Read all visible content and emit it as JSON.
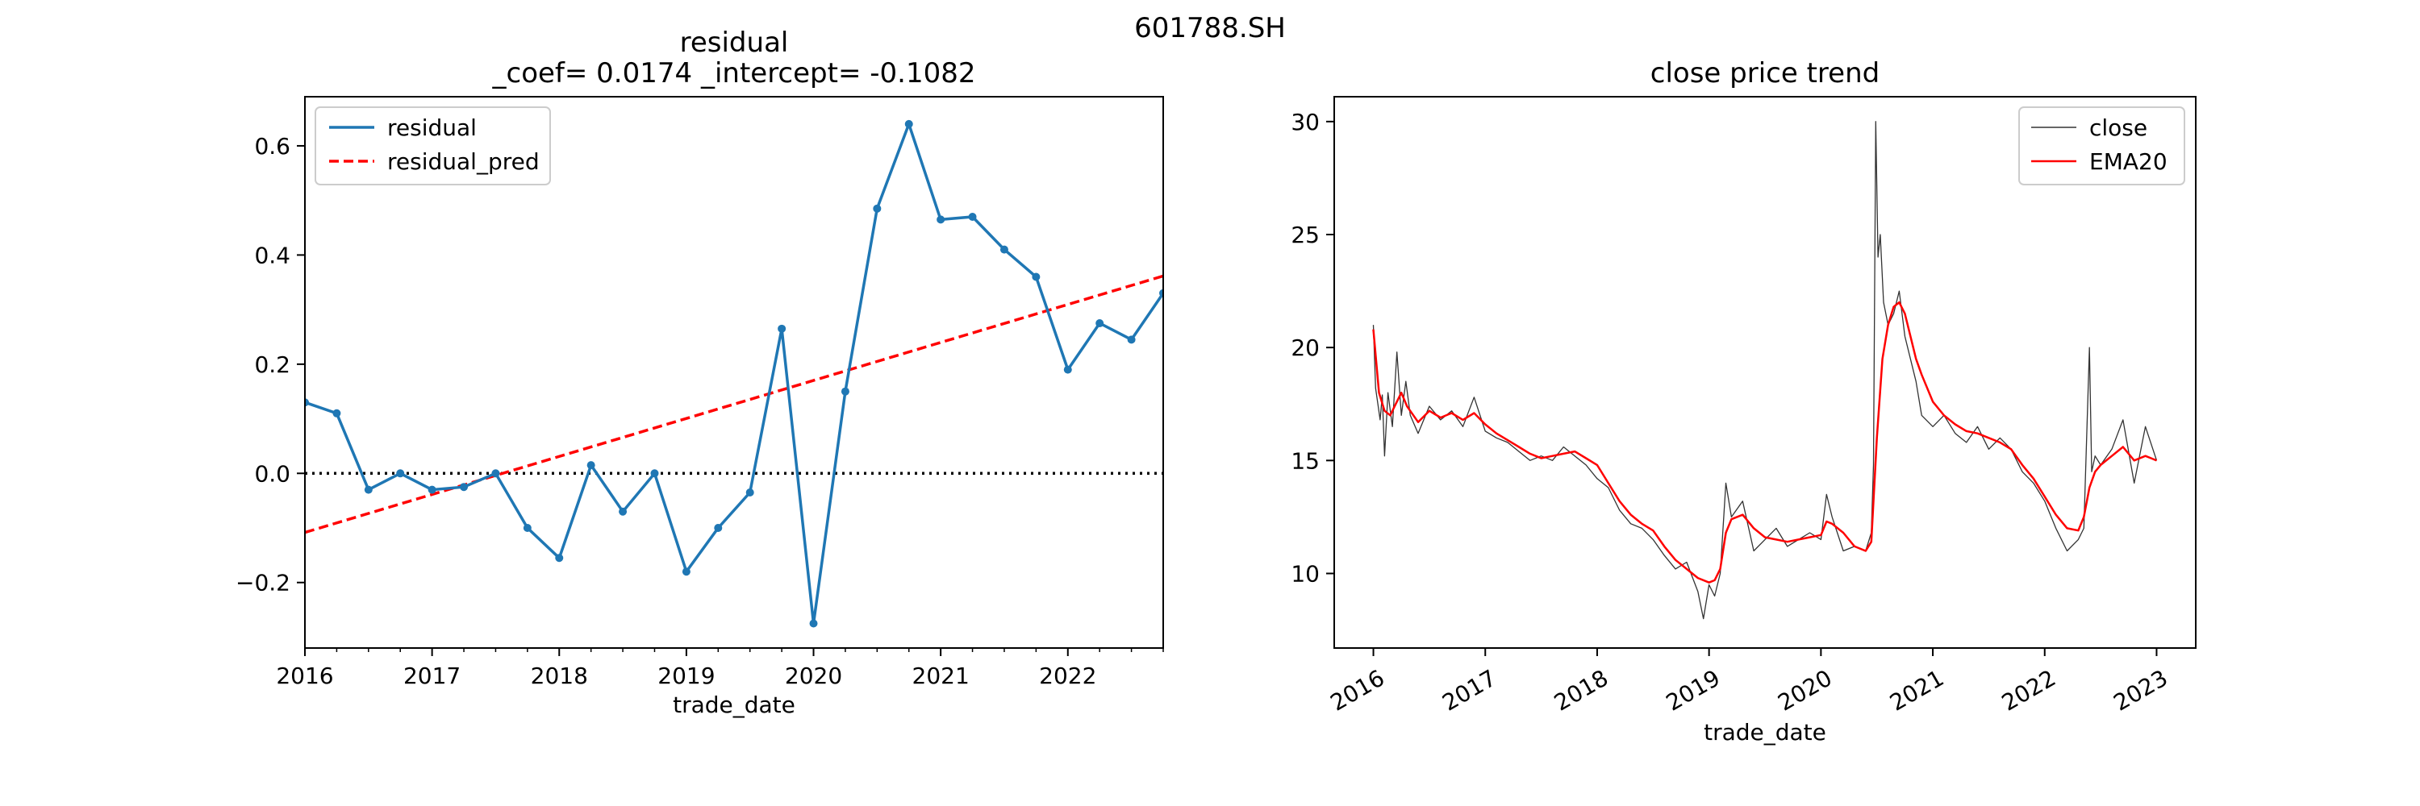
{
  "suptitle": "601788.SH",
  "chart_data": [
    {
      "type": "line",
      "title_line1": "residual",
      "title_line2": "_coef= 0.0174   _intercept= -0.1082",
      "xlabel": "trade_date",
      "ylabel": "",
      "x_tick_labels": [
        "2016",
        "2017",
        "2018",
        "2019",
        "2020",
        "2021",
        "2022"
      ],
      "x_ticks": [
        2016,
        2017,
        2018,
        2019,
        2020,
        2021,
        2022
      ],
      "xlim": [
        2016.0,
        2022.75
      ],
      "y_ticks": [
        -0.2,
        0.0,
        0.2,
        0.4,
        0.6
      ],
      "y_tick_labels": [
        "−0.2",
        "0.0",
        "0.2",
        "0.4",
        "0.6"
      ],
      "ylim": [
        -0.32,
        0.69
      ],
      "grid": false,
      "legend_position": "upper-left",
      "series": [
        {
          "name": "residual",
          "color": "#1f77b4",
          "style": "solid-with-markers",
          "x": [
            "2016-Q1",
            "2016-Q2",
            "2016-Q3",
            "2016-Q4",
            "2017-Q1",
            "2017-Q2",
            "2017-Q3",
            "2017-Q4",
            "2018-Q1",
            "2018-Q2",
            "2018-Q3",
            "2018-Q4",
            "2019-Q1",
            "2019-Q2",
            "2019-Q3",
            "2019-Q4",
            "2020-Q1",
            "2020-Q2",
            "2020-Q3",
            "2020-Q4",
            "2021-Q1",
            "2021-Q2",
            "2021-Q3",
            "2021-Q4",
            "2022-Q1",
            "2022-Q2",
            "2022-Q3",
            "2022-Q4"
          ],
          "values": [
            0.13,
            0.11,
            -0.03,
            0.0,
            -0.03,
            -0.025,
            0.0,
            -0.1,
            -0.155,
            0.015,
            -0.07,
            0.0,
            -0.18,
            -0.1,
            -0.035,
            0.265,
            -0.275,
            0.15,
            0.485,
            0.64,
            0.465,
            0.47,
            0.41,
            0.36,
            0.19,
            0.275,
            0.245,
            0.33
          ]
        },
        {
          "name": "residual_pred",
          "color": "#ff0000",
          "style": "dashed",
          "coef": 0.0174,
          "intercept": -0.1082
        }
      ],
      "reference_line": {
        "y": 0.0,
        "style": "dotted",
        "color": "#000000"
      }
    },
    {
      "type": "line",
      "title": "close price trend",
      "xlabel": "trade_date",
      "ylabel": "",
      "x_tick_labels": [
        "2016",
        "2017",
        "2018",
        "2019",
        "2020",
        "2021",
        "2022",
        "2023"
      ],
      "x_ticks": [
        2016,
        2017,
        2018,
        2019,
        2020,
        2021,
        2022,
        2023
      ],
      "xlim": [
        2015.65,
        2023.35
      ],
      "y_ticks": [
        10,
        15,
        20,
        25,
        30
      ],
      "y_tick_labels": [
        "10",
        "15",
        "20",
        "25",
        "30"
      ],
      "ylim": [
        6.7,
        31.1
      ],
      "grid": false,
      "legend_position": "upper-right",
      "series": [
        {
          "name": "close",
          "color": "#333333",
          "x": [
            2016.0,
            2016.02,
            2016.04,
            2016.06,
            2016.08,
            2016.1,
            2016.13,
            2016.17,
            2016.21,
            2016.25,
            2016.29,
            2016.33,
            2016.4,
            2016.5,
            2016.6,
            2016.7,
            2016.8,
            2016.9,
            2017.0,
            2017.1,
            2017.2,
            2017.3,
            2017.4,
            2017.5,
            2017.6,
            2017.7,
            2017.8,
            2017.9,
            2018.0,
            2018.1,
            2018.2,
            2018.3,
            2018.4,
            2018.5,
            2018.6,
            2018.7,
            2018.8,
            2018.9,
            2018.95,
            2019.0,
            2019.05,
            2019.1,
            2019.15,
            2019.2,
            2019.3,
            2019.4,
            2019.5,
            2019.6,
            2019.7,
            2019.8,
            2019.9,
            2020.0,
            2020.05,
            2020.1,
            2020.2,
            2020.3,
            2020.4,
            2020.45,
            2020.47,
            2020.49,
            2020.51,
            2020.53,
            2020.56,
            2020.6,
            2020.65,
            2020.7,
            2020.75,
            2020.8,
            2020.85,
            2020.9,
            2021.0,
            2021.1,
            2021.2,
            2021.3,
            2021.4,
            2021.5,
            2021.6,
            2021.7,
            2021.8,
            2021.9,
            2022.0,
            2022.1,
            2022.2,
            2022.3,
            2022.35,
            2022.4,
            2022.42,
            2022.45,
            2022.5,
            2022.6,
            2022.7,
            2022.8,
            2022.9,
            2023.0
          ],
          "values": [
            21.0,
            18.2,
            17.5,
            16.8,
            17.9,
            15.2,
            18.0,
            16.5,
            19.8,
            17.0,
            18.5,
            17.0,
            16.2,
            17.4,
            16.8,
            17.2,
            16.5,
            17.8,
            16.3,
            16.0,
            15.8,
            15.4,
            15.0,
            15.2,
            15.0,
            15.6,
            15.2,
            14.8,
            14.2,
            13.8,
            12.8,
            12.2,
            12.0,
            11.5,
            10.8,
            10.2,
            10.5,
            9.2,
            8.0,
            9.5,
            9.0,
            10.0,
            14.0,
            12.5,
            13.2,
            11.0,
            11.5,
            12.0,
            11.2,
            11.5,
            11.8,
            11.5,
            13.5,
            12.5,
            11.0,
            11.2,
            11.0,
            11.8,
            14.8,
            30.0,
            24.0,
            25.0,
            22.0,
            21.0,
            21.5,
            22.5,
            20.5,
            19.5,
            18.5,
            17.0,
            16.5,
            17.0,
            16.2,
            15.8,
            16.5,
            15.5,
            16.0,
            15.5,
            14.5,
            14.0,
            13.2,
            12.0,
            11.0,
            11.5,
            12.0,
            20.0,
            14.5,
            15.2,
            14.8,
            15.5,
            16.8,
            14.0,
            16.5,
            15.0
          ]
        },
        {
          "name": "EMA20",
          "color": "#ff0000",
          "x": [
            2016.0,
            2016.05,
            2016.1,
            2016.15,
            2016.2,
            2016.25,
            2016.3,
            2016.4,
            2016.5,
            2016.6,
            2016.7,
            2016.8,
            2016.9,
            2017.0,
            2017.1,
            2017.2,
            2017.3,
            2017.4,
            2017.5,
            2017.6,
            2017.7,
            2017.8,
            2017.9,
            2018.0,
            2018.1,
            2018.2,
            2018.3,
            2018.4,
            2018.5,
            2018.6,
            2018.7,
            2018.8,
            2018.9,
            2019.0,
            2019.05,
            2019.1,
            2019.15,
            2019.2,
            2019.3,
            2019.4,
            2019.5,
            2019.6,
            2019.7,
            2019.8,
            2019.9,
            2020.0,
            2020.05,
            2020.1,
            2020.2,
            2020.3,
            2020.4,
            2020.45,
            2020.5,
            2020.55,
            2020.6,
            2020.65,
            2020.7,
            2020.75,
            2020.8,
            2020.85,
            2020.9,
            2021.0,
            2021.1,
            2021.2,
            2021.3,
            2021.4,
            2021.5,
            2021.6,
            2021.7,
            2021.8,
            2021.9,
            2022.0,
            2022.1,
            2022.2,
            2022.3,
            2022.35,
            2022.4,
            2022.45,
            2022.5,
            2022.6,
            2022.7,
            2022.8,
            2022.9,
            2023.0
          ],
          "values": [
            20.8,
            18.0,
            17.2,
            17.0,
            17.5,
            18.0,
            17.4,
            16.7,
            17.2,
            16.9,
            17.1,
            16.8,
            17.1,
            16.6,
            16.2,
            15.9,
            15.6,
            15.3,
            15.1,
            15.2,
            15.3,
            15.4,
            15.1,
            14.8,
            14.0,
            13.2,
            12.6,
            12.2,
            11.9,
            11.2,
            10.6,
            10.2,
            9.8,
            9.6,
            9.7,
            10.2,
            11.8,
            12.4,
            12.6,
            12.0,
            11.6,
            11.5,
            11.4,
            11.5,
            11.6,
            11.7,
            12.3,
            12.2,
            11.8,
            11.2,
            11.0,
            11.4,
            16.0,
            19.5,
            21.0,
            21.8,
            22.0,
            21.5,
            20.5,
            19.5,
            18.8,
            17.6,
            17.0,
            16.6,
            16.3,
            16.2,
            16.0,
            15.8,
            15.5,
            14.8,
            14.2,
            13.4,
            12.6,
            12.0,
            11.9,
            12.5,
            13.8,
            14.5,
            14.8,
            15.2,
            15.6,
            15.0,
            15.2,
            15.0
          ]
        }
      ]
    }
  ]
}
